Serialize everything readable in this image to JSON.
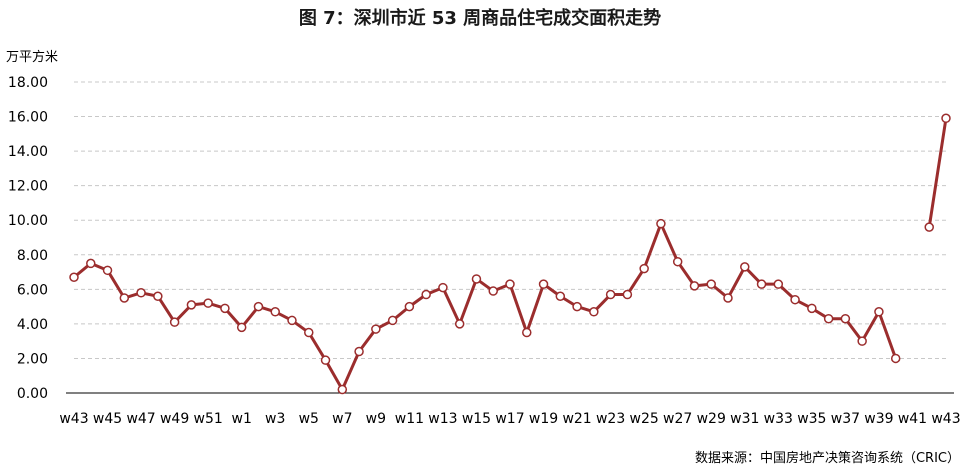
{
  "chart_data": {
    "type": "line",
    "title": "图 7：深圳市近 53 周商品住宅成交面积走势",
    "ylabel": "万平方米",
    "xlabel": "",
    "source": "数据来源：中国房地产决策咨询系统（CRIC）",
    "ylim": [
      0,
      18
    ],
    "yticks": [
      "0.00",
      "2.00",
      "4.00",
      "6.00",
      "8.00",
      "10.00",
      "12.00",
      "14.00",
      "16.00",
      "18.00"
    ],
    "grid": true,
    "line_color": "#9b2d2d",
    "marker_fill": "#ffffff",
    "categories": [
      "w43",
      "w44",
      "w45",
      "w46",
      "w47",
      "w48",
      "w49",
      "w50",
      "w51",
      "w52",
      "w1",
      "w2",
      "w3",
      "w4",
      "w5",
      "w6",
      "w7",
      "w8",
      "w9",
      "w10",
      "w11",
      "w12",
      "w13",
      "w14",
      "w15",
      "w16",
      "w17",
      "w18",
      "w19",
      "w20",
      "w21",
      "w22",
      "w23",
      "w24",
      "w25",
      "w26",
      "w27",
      "w28",
      "w29",
      "w30",
      "w31",
      "w32",
      "w33",
      "w34",
      "w35",
      "w36",
      "w37",
      "w38",
      "w39",
      "w40",
      "w41",
      "w42",
      "w43"
    ],
    "xtick_labels": [
      "w43",
      "",
      "w45",
      "",
      "w47",
      "",
      "w49",
      "",
      "w51",
      "",
      "w1",
      "",
      "w3",
      "",
      "w5",
      "",
      "w7",
      "",
      "w9",
      "",
      "w11",
      "",
      "w13",
      "",
      "w15",
      "",
      "w17",
      "",
      "w19",
      "",
      "w21",
      "",
      "w23",
      "",
      "w25",
      "",
      "w27",
      "",
      "w29",
      "",
      "w31",
      "",
      "w33",
      "",
      "w35",
      "",
      "w37",
      "",
      "w39",
      "",
      "w41",
      "",
      "w43"
    ],
    "series": [
      {
        "values": [
          6.7,
          7.5,
          7.1,
          5.5,
          5.8,
          5.6,
          4.1,
          5.1,
          5.2,
          4.9,
          3.8,
          5.0,
          4.7,
          4.2,
          3.5,
          1.9,
          0.2,
          2.4,
          3.7,
          4.2,
          5.0,
          5.7,
          6.1,
          4.0,
          6.6,
          5.9,
          6.3,
          3.5,
          6.3,
          5.6,
          5.0,
          4.7,
          5.7,
          5.7,
          7.2,
          9.8,
          7.6,
          6.2,
          6.3,
          5.5,
          7.3,
          6.3,
          6.3,
          5.4,
          4.9,
          4.3,
          4.3,
          3.0,
          4.7,
          2.0,
          null,
          9.6,
          15.9
        ]
      }
    ]
  }
}
